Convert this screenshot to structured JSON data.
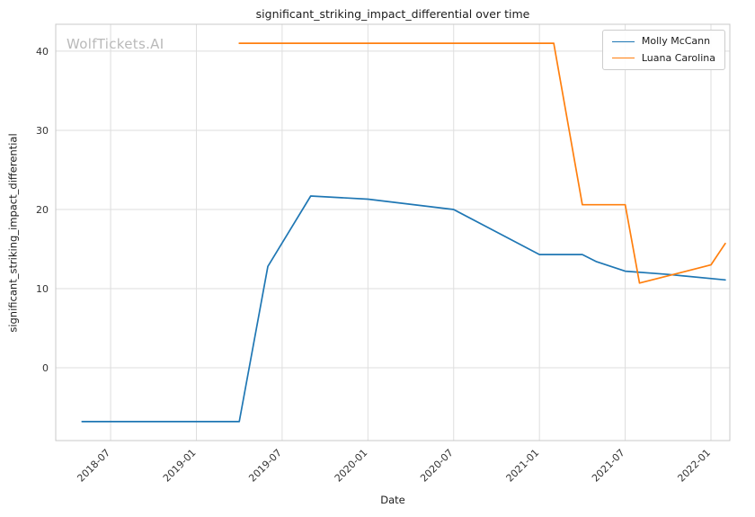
{
  "watermark": "WolfTickets.AI",
  "chart_data": {
    "type": "line",
    "title": "significant_striking_impact_differential over time",
    "xlabel": "Date",
    "ylabel": "significant_striking_impact_differential",
    "grid": true,
    "legend_position": "upper right",
    "xlim": [
      2018.18,
      2022.11
    ],
    "ylim": [
      -9.2,
      43.4
    ],
    "yticks": [
      0,
      10,
      20,
      30,
      40
    ],
    "xticks": [
      "2018-07",
      "2019-01",
      "2019-07",
      "2020-01",
      "2020-07",
      "2021-01",
      "2021-07",
      "2022-01"
    ],
    "series": [
      {
        "name": "Molly McCann",
        "color": "#1f77b4",
        "points": [
          [
            "2018-05",
            -6.8
          ],
          [
            "2019-04",
            -6.8
          ],
          [
            "2019-06",
            12.8
          ],
          [
            "2019-09",
            21.7
          ],
          [
            "2020-01",
            21.3
          ],
          [
            "2020-07",
            20.0
          ],
          [
            "2021-01",
            14.3
          ],
          [
            "2021-04",
            14.3
          ],
          [
            "2021-05",
            13.4
          ],
          [
            "2021-07",
            12.2
          ],
          [
            "2021-10",
            11.8
          ],
          [
            "2022-02",
            11.1
          ]
        ]
      },
      {
        "name": "Luana Carolina",
        "color": "#ff7f0e",
        "points": [
          [
            "2019-04",
            41.0
          ],
          [
            "2021-02",
            41.0
          ],
          [
            "2021-04",
            20.6
          ],
          [
            "2021-07",
            20.6
          ],
          [
            "2021-08",
            10.7
          ],
          [
            "2022-01",
            13.0
          ],
          [
            "2022-02",
            15.7
          ]
        ]
      }
    ]
  }
}
